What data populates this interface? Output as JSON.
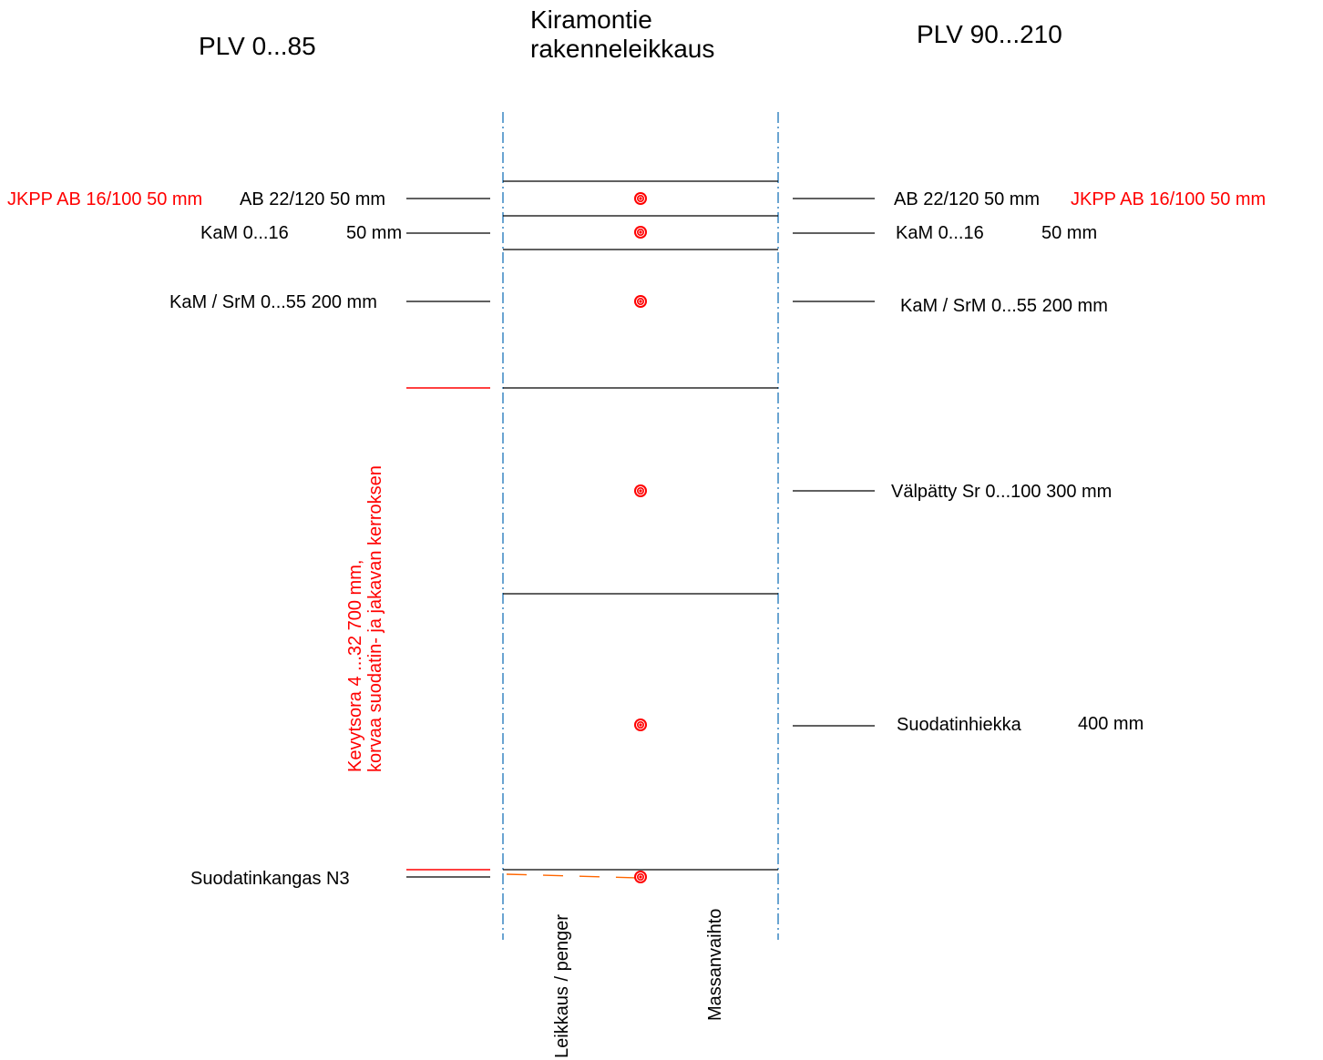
{
  "titles": {
    "left": "PLV 0...85",
    "center_line1": "Kiramontie",
    "center_line2": "rakenneleikkaus",
    "right": "PLV 90...210"
  },
  "left_labels": {
    "jkpp_red": "JKPP AB 16/100   50 mm",
    "ab": "AB 22/120  50 mm",
    "kam016_name": "KaM 0...16",
    "kam016_thk": "50 mm",
    "kamsrm": "KaM / SrM 0...55   200 mm",
    "kevytsora_line1": "Kevytsora 4 ...32      700 mm,",
    "kevytsora_line2": "korvaa suodatin- ja jakavan kerroksen",
    "suodatinkangas": "Suodatinkangas  N3"
  },
  "right_labels": {
    "ab": "AB 22/120  50 mm",
    "jkpp_red": "JKPP AB 16/100   50 mm",
    "kam016_name": "KaM 0...16",
    "kam016_thk": "50 mm",
    "kamsrm": "KaM / SrM 0...55   200 mm",
    "valpatty": "Välpätty Sr 0...100   300 mm",
    "suodatinhiekka_name": "Suodatinhiekka",
    "suodatinhiekka_thk": "400 mm"
  },
  "bottom_labels": {
    "leikkaus": "Leikkaus / penger",
    "massanvaihto": "Massanvaihto"
  },
  "colors": {
    "black": "#000000",
    "red": "#ff0000",
    "axis_blue": "#1a74b8",
    "orange": "#ff6600"
  }
}
